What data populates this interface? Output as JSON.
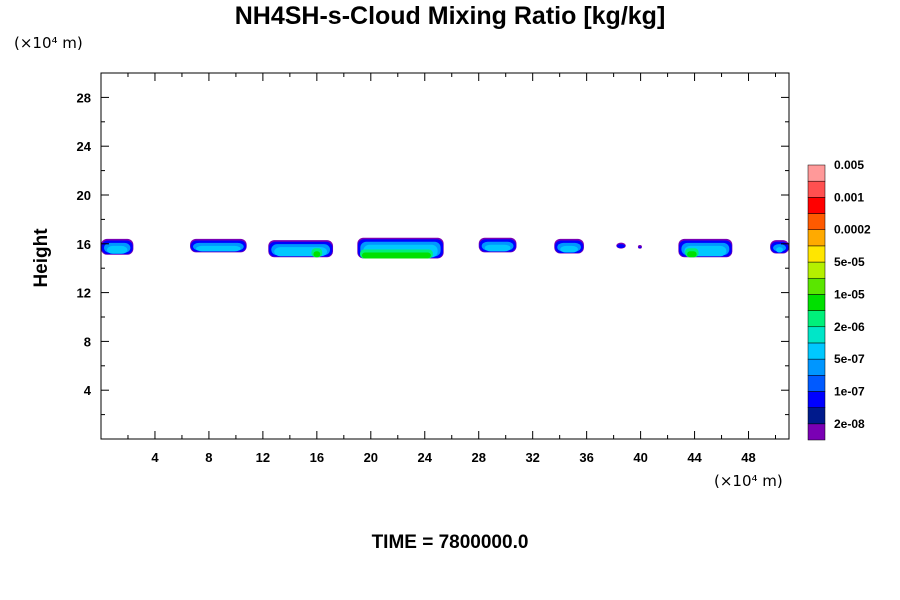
{
  "chart_data": {
    "type": "heatmap",
    "title": "NH4SH-s-Cloud Mixing Ratio [kg/kg]",
    "ylabel": "Height",
    "x_unit": "(×10⁴ m)",
    "y_unit": "(×10⁴ m)",
    "footer": "TIME = 7800000.0",
    "xlim": [
      0,
      51
    ],
    "ylim": [
      0,
      30
    ],
    "xticks": [
      4,
      8,
      12,
      16,
      20,
      24,
      28,
      32,
      36,
      40,
      44,
      48
    ],
    "yticks": [
      4,
      8,
      12,
      16,
      20,
      24,
      28
    ],
    "colorbar": {
      "colors": [
        "#7a00b4",
        "#001a8c",
        "#0000ff",
        "#005aff",
        "#0096ff",
        "#00c8ff",
        "#00e6c8",
        "#00f07a",
        "#00e000",
        "#5ae600",
        "#b4f000",
        "#ffe600",
        "#ffaa00",
        "#ff5a00",
        "#ff0000",
        "#ff5050",
        "#ff9999"
      ],
      "labels": [
        "2e-08",
        "1e-07",
        "5e-07",
        "2e-06",
        "1e-05",
        "5e-05",
        "0.0002",
        "0.001",
        "0.005"
      ]
    },
    "cloud_patches": [
      {
        "x": [
          0.0,
          2.4
        ],
        "y": [
          15.1,
          16.4
        ],
        "core": null
      },
      {
        "x": [
          6.6,
          10.8
        ],
        "y": [
          15.3,
          16.4
        ],
        "core": null
      },
      {
        "x": [
          12.4,
          17.2
        ],
        "y": [
          14.9,
          16.3
        ],
        "core": [
          15.6,
          16.4
        ]
      },
      {
        "x": [
          19.0,
          25.4
        ],
        "y": [
          14.8,
          16.5
        ],
        "core": [
          19.2,
          24.6
        ]
      },
      {
        "x": [
          28.0,
          30.8
        ],
        "y": [
          15.3,
          16.5
        ],
        "core": null
      },
      {
        "x": [
          33.6,
          35.8
        ],
        "y": [
          15.2,
          16.4
        ],
        "core": null
      },
      {
        "x": [
          38.2,
          38.9
        ],
        "y": [
          15.6,
          16.1
        ],
        "core": null
      },
      {
        "x": [
          39.8,
          40.1
        ],
        "y": [
          15.6,
          15.9
        ],
        "core": null
      },
      {
        "x": [
          42.8,
          46.8
        ],
        "y": [
          14.9,
          16.4
        ],
        "core": [
          43.3,
          44.3
        ]
      },
      {
        "x": [
          49.6,
          51.0
        ],
        "y": [
          15.2,
          16.3
        ],
        "core": null
      }
    ]
  }
}
